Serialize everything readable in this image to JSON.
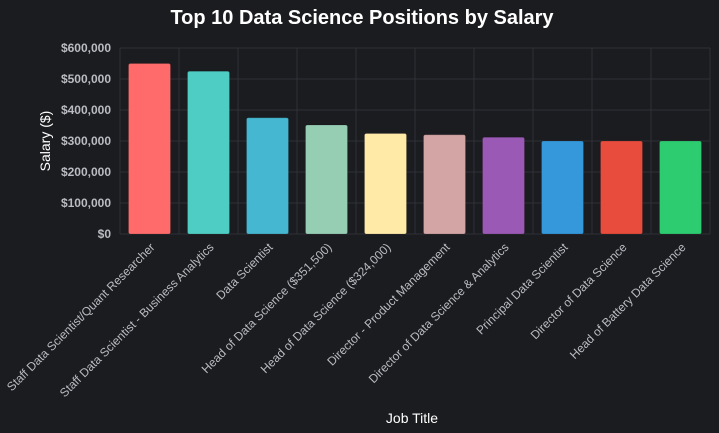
{
  "chart_data": {
    "type": "bar",
    "title": "Top 10 Data Science Positions by Salary",
    "xlabel": "Job Title",
    "ylabel": "Salary ($)",
    "ylim": [
      0,
      600000
    ],
    "yticks": [
      "$0",
      "$100,000",
      "$200,000",
      "$300,000",
      "$400,000",
      "$500,000",
      "$600,000"
    ],
    "grid": true,
    "categories": [
      "Staff Data Scientist/Quant Researcher",
      "Staff Data Scientist - Business Analytics",
      "Data Scientist",
      "Head of Data Science ($351,500)",
      "Head of Data Science ($324,000)",
      "Director - Product Management",
      "Director of Data Science & Analytics",
      "Principal Data Scientist",
      "Director of Data Science",
      "Head of Battery Data Science"
    ],
    "values": [
      550000,
      525000,
      375000,
      351500,
      324000,
      320000,
      312000,
      300000,
      300000,
      300000
    ],
    "colors": [
      "#ff6b6b",
      "#4ecdc4",
      "#45b7d1",
      "#96ceb4",
      "#ffeaa7",
      "#d4a5a5",
      "#9b59b6",
      "#3498db",
      "#e74c3c",
      "#2ecc71"
    ]
  }
}
